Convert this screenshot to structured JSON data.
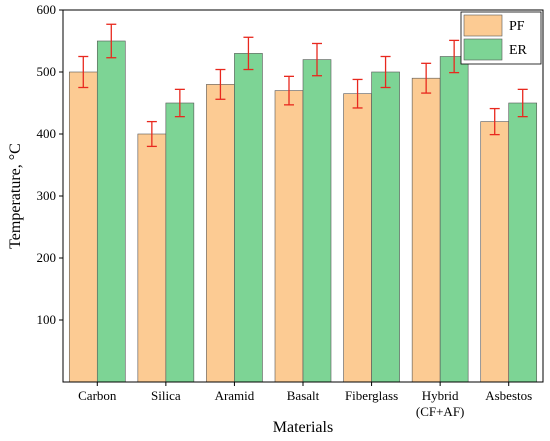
{
  "chart_data": {
    "type": "bar",
    "categories": [
      "Carbon",
      "Silica",
      "Aramid",
      "Basalt",
      "Fiberglass",
      [
        "Hybrid",
        "(CF+AF)"
      ],
      "Asbestos"
    ],
    "series": [
      {
        "name": "PF",
        "color": "#FCCB93",
        "values": [
          500,
          400,
          480,
          470,
          465,
          490,
          420
        ],
        "errors": [
          25,
          20,
          24,
          23,
          23,
          24,
          21
        ]
      },
      {
        "name": "ER",
        "color": "#7DD495",
        "values": [
          550,
          450,
          530,
          520,
          500,
          525,
          450
        ],
        "errors": [
          27,
          22,
          26,
          26,
          25,
          26,
          22
        ]
      }
    ],
    "xlabel": "Materials",
    "ylabel": "Temperature, °C",
    "ylim": [
      0,
      600
    ],
    "yticks": [
      100,
      200,
      300,
      400,
      500,
      600
    ],
    "error_color": "#E8281E",
    "grid": false,
    "legend_position": "top-right"
  }
}
